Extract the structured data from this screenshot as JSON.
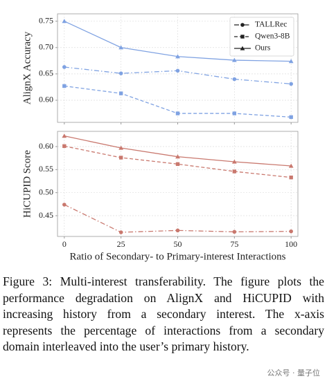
{
  "chart_data": [
    {
      "type": "line",
      "y_label": "AlignX Accuracy",
      "x": [
        0,
        25,
        50,
        75,
        100
      ],
      "xlim": [
        -3,
        103
      ],
      "xticks": [
        0,
        25,
        50,
        75,
        100
      ],
      "xtick_labels": false,
      "ylim": [
        0.558,
        0.764
      ],
      "yticks": [
        {
          "value": 0.6,
          "label": "0.60"
        },
        {
          "value": 0.65,
          "label": "0.65"
        },
        {
          "value": 0.7,
          "label": "0.70"
        },
        {
          "value": 0.75,
          "label": "0.75"
        }
      ],
      "grid": true,
      "legend": "upper right",
      "series": [
        {
          "name": "TALLRec",
          "color": "#7fa2e2",
          "linestyle": "dashdot",
          "marker": "circle",
          "values": [
            0.663,
            0.651,
            0.656,
            0.64,
            0.631
          ]
        },
        {
          "name": "Qwen3-8B",
          "color": "#7fa2e2",
          "linestyle": "dashed",
          "marker": "square",
          "values": [
            0.627,
            0.613,
            0.575,
            0.575,
            0.568
          ]
        },
        {
          "name": "Ours",
          "color": "#7fa2e2",
          "linestyle": "solid",
          "marker": "triangle",
          "values": [
            0.75,
            0.7,
            0.683,
            0.676,
            0.674
          ]
        }
      ]
    },
    {
      "type": "line",
      "y_label": "HiCUPID Score",
      "x_label": "Ratio of  Secondary- to Primary-interest Interactions",
      "x": [
        0,
        25,
        50,
        75,
        100
      ],
      "xlim": [
        -3,
        103
      ],
      "xticks": [
        0,
        25,
        50,
        75,
        100
      ],
      "xtick_labels": true,
      "ylim": [
        0.405,
        0.633
      ],
      "yticks": [
        {
          "value": 0.45,
          "label": "0.45"
        },
        {
          "value": 0.5,
          "label": "0.50"
        },
        {
          "value": 0.55,
          "label": "0.55"
        },
        {
          "value": 0.6,
          "label": "0.60"
        }
      ],
      "grid": true,
      "series": [
        {
          "color": "#c9786e",
          "linestyle": "dashdot",
          "marker": "circle",
          "values": [
            0.474,
            0.414,
            0.418,
            0.415,
            0.416
          ]
        },
        {
          "color": "#c9786e",
          "linestyle": "dashed",
          "marker": "square",
          "values": [
            0.601,
            0.576,
            0.562,
            0.546,
            0.533
          ]
        },
        {
          "color": "#c9786e",
          "linestyle": "solid",
          "marker": "triangle",
          "values": [
            0.623,
            0.597,
            0.578,
            0.567,
            0.558
          ]
        }
      ]
    }
  ],
  "caption": "Figure 3: Multi-interest transferability. The figure plots the performance degradation on AlignX and HiCUPID with increasing history from a secondary interest. The x-axis represents the percentage of interactions from a secondary domain interleaved into the user’s primary history.",
  "watermark": "公众号 · 量子位"
}
